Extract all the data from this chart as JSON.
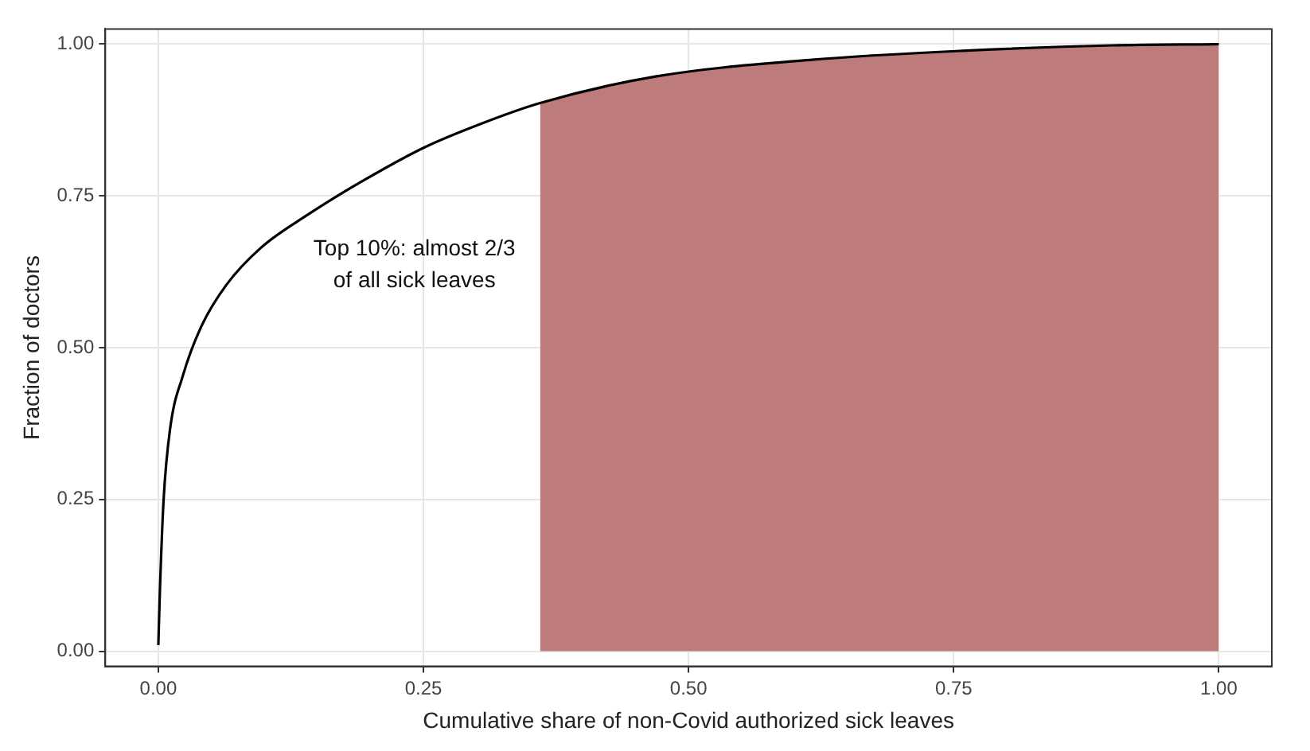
{
  "chart_data": {
    "type": "line",
    "xlabel": "Cumulative share of non-Covid authorized sick leaves",
    "ylabel": "Fraction of doctors",
    "annotations": [
      "Top 10%: almost 2/3 of all sick leaves"
    ],
    "xlim": [
      -0.05,
      1.05
    ],
    "ylim": [
      -0.025,
      1.025
    ],
    "xticks": [
      {
        "value": 0,
        "label": "0.00"
      },
      {
        "value": 0.25,
        "label": "0.25"
      },
      {
        "value": 0.5,
        "label": "0.50"
      },
      {
        "value": 0.75,
        "label": "0.75"
      },
      {
        "value": 1,
        "label": "1.00"
      }
    ],
    "yticks": [
      {
        "value": 0,
        "label": "0.00"
      },
      {
        "value": 0.25,
        "label": "0.25"
      },
      {
        "value": 0.5,
        "label": "0.50"
      },
      {
        "value": 0.75,
        "label": "0.75"
      },
      {
        "value": 1,
        "label": "1.00"
      }
    ],
    "grid": true,
    "legend": false,
    "series": [
      {
        "type": "area",
        "color": "#bd7b7b",
        "x": [
          0.36,
          0.47,
          0.614,
          0.758,
          0.9,
          1.0
        ],
        "values": [
          0.903,
          0.947,
          0.974,
          0.989,
          0.998,
          1.0
        ]
      },
      {
        "type": "line",
        "color": "#000000",
        "x": [
          0,
          0.0015,
          0.005,
          0.011,
          0.023,
          0.04,
          0.064,
          0.097,
          0.14,
          0.193,
          0.251,
          0.303,
          0.36,
          0.47,
          0.614,
          0.758,
          0.9,
          1.0
        ],
        "values": [
          0.01,
          0.1,
          0.25,
          0.365,
          0.453,
          0.533,
          0.603,
          0.665,
          0.718,
          0.775,
          0.83,
          0.868,
          0.903,
          0.947,
          0.974,
          0.989,
          0.998,
          1.0
        ]
      }
    ]
  }
}
